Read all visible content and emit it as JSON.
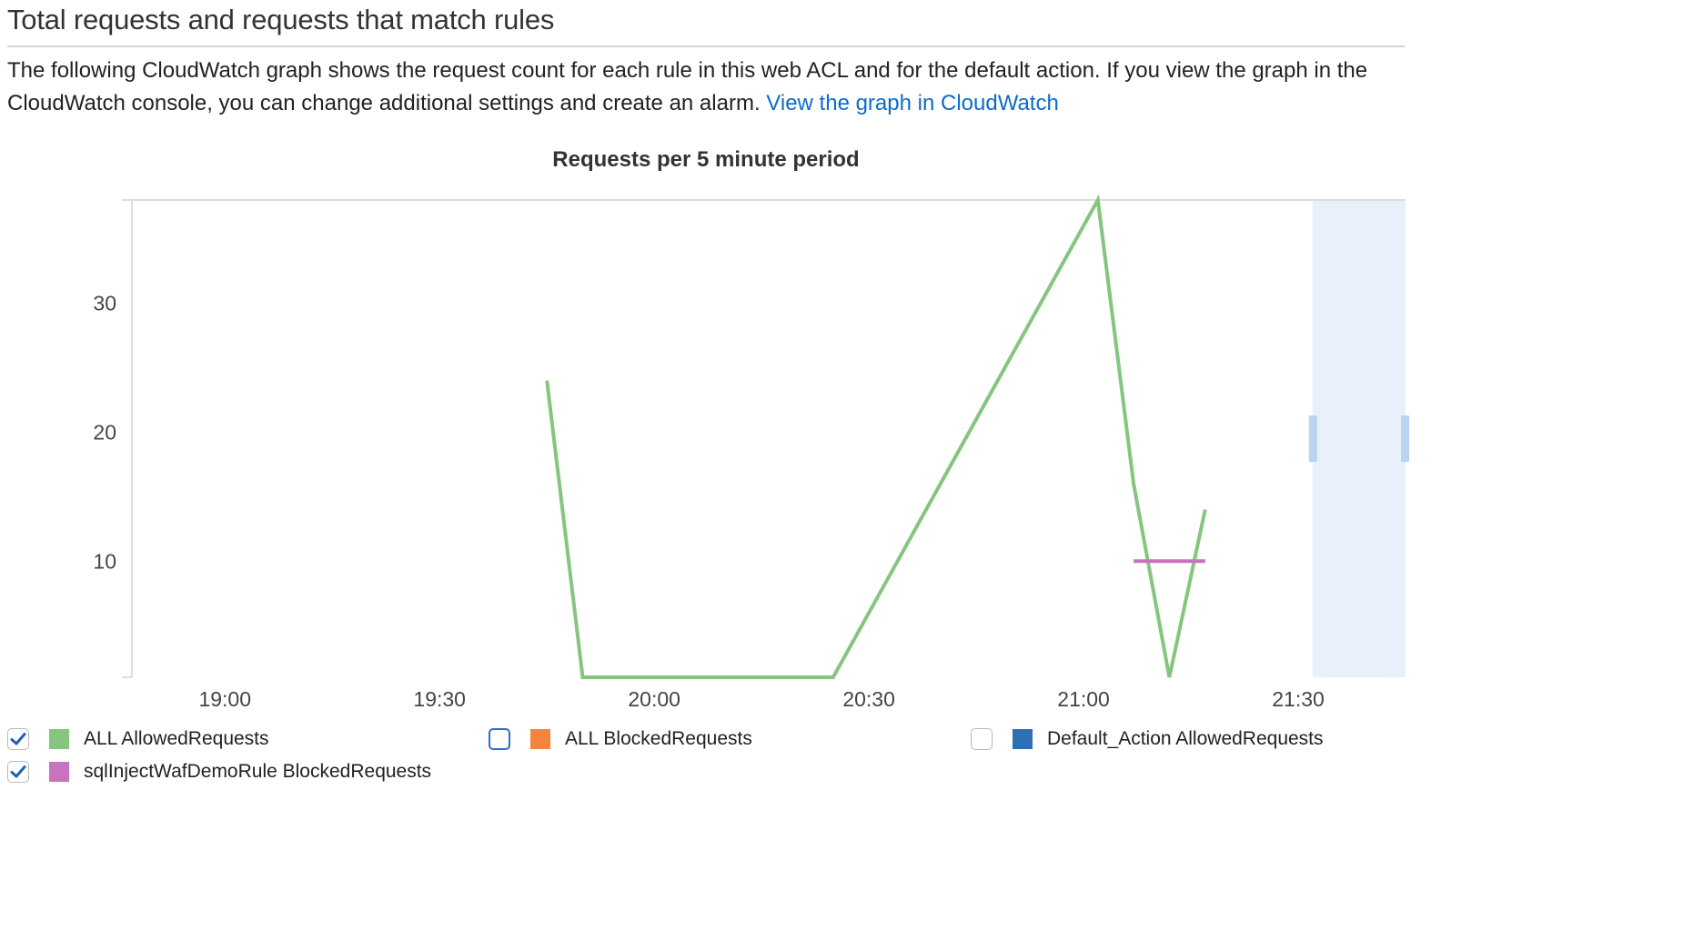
{
  "section": {
    "title": "Total requests and requests that match rules",
    "description": "The following CloudWatch graph shows the request count for each rule in this web ACL and for the default action. If you view the graph in the CloudWatch console, you can change additional settings and create an alarm.",
    "link_label": "View the graph in CloudWatch"
  },
  "chart_data": {
    "type": "line",
    "title": "Requests per 5 minute period",
    "xlabel": "",
    "ylabel": "",
    "x_ticks": [
      "19:00",
      "19:30",
      "20:00",
      "20:30",
      "21:00",
      "21:30"
    ],
    "x_range": [
      "18:47",
      "21:45"
    ],
    "y_ticks": [
      10,
      20,
      30
    ],
    "ylim": [
      1,
      38
    ],
    "grid": false,
    "highlight_range": [
      "21:32",
      "21:45"
    ],
    "series": [
      {
        "name": "ALL AllowedRequests",
        "color": "#86c57f",
        "checked": true,
        "x": [
          "19:45",
          "19:50",
          "20:25",
          "21:02",
          "21:07",
          "21:12",
          "21:17"
        ],
        "y": [
          24,
          1,
          1,
          38,
          16,
          1,
          14
        ]
      },
      {
        "name": "ALL BlockedRequests",
        "color": "#f2843b",
        "checked": false,
        "x": [],
        "y": []
      },
      {
        "name": "Default_Action AllowedRequests",
        "color": "#2f6fb3",
        "checked": false,
        "x": [],
        "y": []
      },
      {
        "name": "sqlInjectWafDemoRule BlockedRequests",
        "color": "#c872c0",
        "checked": true,
        "x": [
          "21:07",
          "21:17"
        ],
        "y": [
          10,
          10
        ]
      }
    ]
  }
}
